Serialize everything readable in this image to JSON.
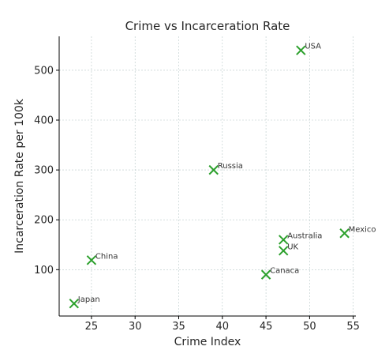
{
  "chart_data": {
    "type": "scatter",
    "title": "Crime vs Incarceration Rate",
    "xlabel": "Crime Index",
    "ylabel": "Incarceration Rate per 100k",
    "xlim": [
      21.3,
      55.3
    ],
    "ylim": [
      7,
      568
    ],
    "xticks": [
      25,
      30,
      35,
      40,
      45,
      50,
      55
    ],
    "yticks": [
      100,
      200,
      300,
      400,
      500
    ],
    "grid": true,
    "marker": "x",
    "color": "#2ca02c",
    "points": [
      {
        "label": "USA",
        "x": 49,
        "y": 540
      },
      {
        "label": "Russia",
        "x": 39,
        "y": 300
      },
      {
        "label": "Mexico",
        "x": 54,
        "y": 173
      },
      {
        "label": "Australia",
        "x": 47,
        "y": 160
      },
      {
        "label": "UK",
        "x": 47,
        "y": 138
      },
      {
        "label": "China",
        "x": 25,
        "y": 119
      },
      {
        "label": "Canaca",
        "x": 45,
        "y": 90
      },
      {
        "label": "Japan",
        "x": 23,
        "y": 32
      }
    ]
  }
}
